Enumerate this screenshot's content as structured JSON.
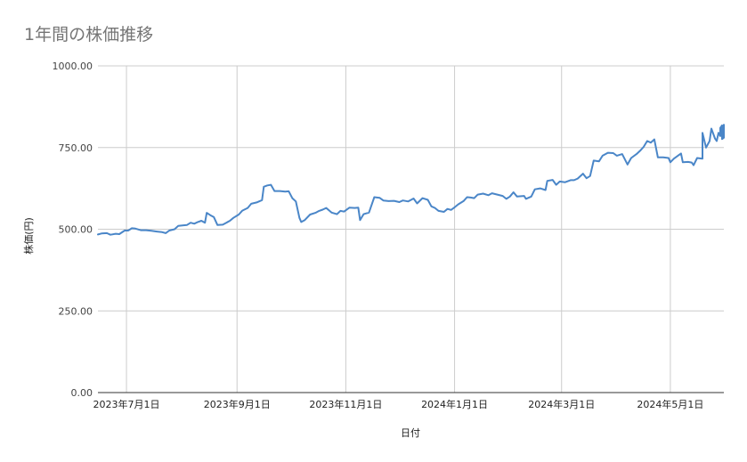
{
  "chart_data": {
    "type": "line",
    "title": "1年間の株価推移",
    "xlabel": "日付",
    "ylabel": "株価(円)",
    "ylim": [
      0,
      1000
    ],
    "yticks": [
      0,
      250,
      500,
      750,
      1000
    ],
    "ytick_labels": [
      "0.00",
      "250.00",
      "500.00",
      "750.00",
      "1000.00"
    ],
    "xlim": [
      "2023-06-15",
      "2024-05-31"
    ],
    "xticks": [
      "2023-07-01",
      "2023-09-01",
      "2023-11-01",
      "2024-01-01",
      "2024-03-01",
      "2024-05-01"
    ],
    "xtick_labels": [
      "2023年7月1日",
      "2023年9月1日",
      "2023年11月1日",
      "2024年1月1日",
      "2024年3月1日",
      "2024年5月1日"
    ],
    "grid": true,
    "line_color": "#4a86c8",
    "series": [
      {
        "points": [
          [
            "2023-06-15",
            484
          ],
          [
            "2023-06-17",
            487
          ],
          [
            "2023-06-20",
            488
          ],
          [
            "2023-06-22",
            483
          ],
          [
            "2023-06-25",
            486
          ],
          [
            "2023-06-27",
            485
          ],
          [
            "2023-06-30",
            496
          ],
          [
            "2023-07-02",
            496
          ],
          [
            "2023-07-04",
            503
          ],
          [
            "2023-07-06",
            502
          ],
          [
            "2023-07-09",
            497
          ],
          [
            "2023-07-12",
            497
          ],
          [
            "2023-07-15",
            495
          ],
          [
            "2023-07-18",
            493
          ],
          [
            "2023-07-21",
            491
          ],
          [
            "2023-07-23",
            488
          ],
          [
            "2023-07-25",
            496
          ],
          [
            "2023-07-28",
            500
          ],
          [
            "2023-07-30",
            510
          ],
          [
            "2023-08-02",
            512
          ],
          [
            "2023-08-04",
            513
          ],
          [
            "2023-08-06",
            520
          ],
          [
            "2023-08-08",
            517
          ],
          [
            "2023-08-10",
            522
          ],
          [
            "2023-08-12",
            526
          ],
          [
            "2023-08-14",
            520
          ],
          [
            "2023-08-15",
            550
          ],
          [
            "2023-08-17",
            543
          ],
          [
            "2023-08-19",
            537
          ],
          [
            "2023-08-21",
            513
          ],
          [
            "2023-08-24",
            514
          ],
          [
            "2023-08-26",
            520
          ],
          [
            "2023-08-28",
            526
          ],
          [
            "2023-08-30",
            535
          ],
          [
            "2023-09-02",
            545
          ],
          [
            "2023-09-04",
            557
          ],
          [
            "2023-09-07",
            565
          ],
          [
            "2023-09-09",
            578
          ],
          [
            "2023-09-12",
            582
          ],
          [
            "2023-09-15",
            589
          ],
          [
            "2023-09-16",
            630
          ],
          [
            "2023-09-18",
            634
          ],
          [
            "2023-09-20",
            636
          ],
          [
            "2023-09-22",
            617
          ],
          [
            "2023-09-25",
            617
          ],
          [
            "2023-09-28",
            615
          ],
          [
            "2023-09-30",
            616
          ],
          [
            "2023-10-02",
            595
          ],
          [
            "2023-10-04",
            585
          ],
          [
            "2023-10-06",
            535
          ],
          [
            "2023-10-07",
            522
          ],
          [
            "2023-10-09",
            528
          ],
          [
            "2023-10-12",
            545
          ],
          [
            "2023-10-15",
            550
          ],
          [
            "2023-10-17",
            556
          ],
          [
            "2023-10-19",
            560
          ],
          [
            "2023-10-21",
            565
          ],
          [
            "2023-10-24",
            551
          ],
          [
            "2023-10-27",
            546
          ],
          [
            "2023-10-29",
            556
          ],
          [
            "2023-10-31",
            554
          ],
          [
            "2023-11-03",
            566
          ],
          [
            "2023-11-06",
            565
          ],
          [
            "2023-11-08",
            566
          ],
          [
            "2023-11-09",
            528
          ],
          [
            "2023-11-11",
            546
          ],
          [
            "2023-11-14",
            551
          ],
          [
            "2023-11-17",
            598
          ],
          [
            "2023-11-20",
            596
          ],
          [
            "2023-11-22",
            588
          ],
          [
            "2023-11-25",
            586
          ],
          [
            "2023-11-28",
            587
          ],
          [
            "2023-12-01",
            583
          ],
          [
            "2023-12-03",
            588
          ],
          [
            "2023-12-06",
            585
          ],
          [
            "2023-12-09",
            594
          ],
          [
            "2023-12-11",
            579
          ],
          [
            "2023-12-14",
            595
          ],
          [
            "2023-12-17",
            590
          ],
          [
            "2023-12-19",
            570
          ],
          [
            "2023-12-21",
            565
          ],
          [
            "2023-12-23",
            556
          ],
          [
            "2023-12-26",
            553
          ],
          [
            "2023-12-28",
            562
          ],
          [
            "2023-12-30",
            559
          ],
          [
            "2024-01-01",
            567
          ],
          [
            "2024-01-03",
            576
          ],
          [
            "2024-01-06",
            586
          ],
          [
            "2024-01-08",
            598
          ],
          [
            "2024-01-10",
            597
          ],
          [
            "2024-01-12",
            595
          ],
          [
            "2024-01-14",
            606
          ],
          [
            "2024-01-17",
            609
          ],
          [
            "2024-01-20",
            604
          ],
          [
            "2024-01-22",
            610
          ],
          [
            "2024-01-25",
            606
          ],
          [
            "2024-01-28",
            602
          ],
          [
            "2024-01-30",
            593
          ],
          [
            "2024-02-01",
            600
          ],
          [
            "2024-02-03",
            613
          ],
          [
            "2024-02-05",
            600
          ],
          [
            "2024-02-09",
            602
          ],
          [
            "2024-02-10",
            593
          ],
          [
            "2024-02-13",
            600
          ],
          [
            "2024-02-15",
            622
          ],
          [
            "2024-02-18",
            625
          ],
          [
            "2024-02-21",
            620
          ],
          [
            "2024-02-22",
            648
          ],
          [
            "2024-02-25",
            651
          ],
          [
            "2024-02-27",
            636
          ],
          [
            "2024-02-29",
            646
          ],
          [
            "2024-03-03",
            644
          ],
          [
            "2024-03-06",
            650
          ],
          [
            "2024-03-08",
            650
          ],
          [
            "2024-03-10",
            655
          ],
          [
            "2024-03-13",
            670
          ],
          [
            "2024-03-15",
            656
          ],
          [
            "2024-03-17",
            663
          ],
          [
            "2024-03-19",
            710
          ],
          [
            "2024-03-22",
            708
          ],
          [
            "2024-03-24",
            725
          ],
          [
            "2024-03-27",
            734
          ],
          [
            "2024-03-30",
            733
          ],
          [
            "2024-04-01",
            725
          ],
          [
            "2024-04-04",
            730
          ],
          [
            "2024-04-07",
            698
          ],
          [
            "2024-04-09",
            718
          ],
          [
            "2024-04-12",
            730
          ],
          [
            "2024-04-14",
            740
          ],
          [
            "2024-04-16",
            752
          ],
          [
            "2024-04-18",
            770
          ],
          [
            "2024-04-20",
            765
          ],
          [
            "2024-04-22",
            775
          ],
          [
            "2024-04-24",
            720
          ],
          [
            "2024-04-27",
            720
          ],
          [
            "2024-04-30",
            718
          ],
          [
            "2024-05-01",
            705
          ],
          [
            "2024-05-03",
            716
          ],
          [
            "2024-05-05",
            724
          ],
          [
            "2024-05-07",
            732
          ],
          [
            "2024-05-08",
            705
          ],
          [
            "2024-05-11",
            706
          ],
          [
            "2024-05-13",
            704
          ],
          [
            "2024-05-14",
            696
          ],
          [
            "2024-05-16",
            718
          ],
          [
            "2024-05-19",
            716
          ],
          [
            "2024-05-19",
            795
          ],
          [
            "2024-05-21",
            750
          ],
          [
            "2024-05-23",
            770
          ],
          [
            "2024-05-24",
            808
          ],
          [
            "2024-05-26",
            778
          ],
          [
            "2024-05-27",
            770
          ],
          [
            "2024-05-28",
            795
          ],
          [
            "2024-05-29",
            785
          ],
          [
            "2024-05-29",
            810
          ],
          [
            "2024-05-30",
            818
          ],
          [
            "2024-05-30",
            776
          ],
          [
            "2024-05-31",
            780
          ],
          [
            "2024-05-31",
            820
          ]
        ]
      }
    ]
  }
}
